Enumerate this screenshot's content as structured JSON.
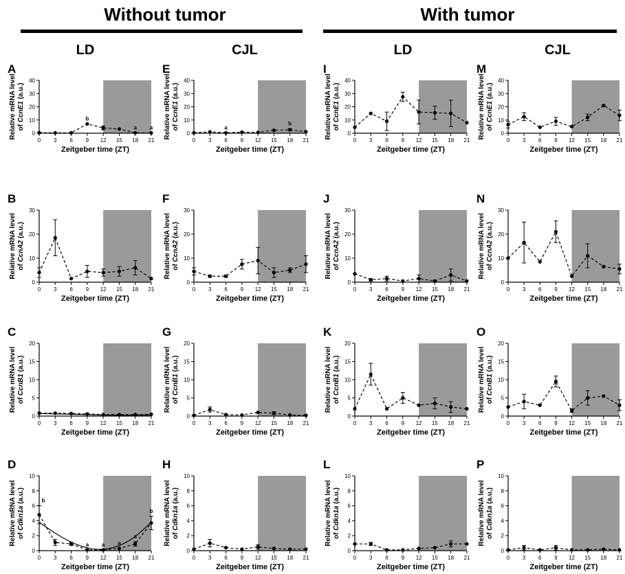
{
  "groups": [
    {
      "title": "Without tumor",
      "columns": [
        "LD",
        "CJL"
      ]
    },
    {
      "title": "With tumor",
      "columns": [
        "LD",
        "CJL"
      ]
    }
  ],
  "chart_data": [
    {
      "id": "A",
      "type": "line",
      "gene": "CcnE1",
      "ylabel": "Relative mRNA level",
      "ylabel2_prefix": "of ",
      "ylabel2_suffix": " (a.u.)",
      "xlabel": "Zeitgeber time (ZT)",
      "x": [
        0,
        3,
        6,
        9,
        12,
        15,
        18,
        21
      ],
      "y": [
        0.4,
        0.3,
        0.3,
        7,
        4,
        3.2,
        0.3,
        0.2
      ],
      "err": [
        0,
        0,
        0,
        0,
        1.5,
        0,
        0,
        0
      ],
      "ylim": [
        0,
        40
      ],
      "yticks": [
        0,
        10,
        20,
        30,
        40
      ],
      "shaded_from": 12,
      "letters": [
        [
          "b",
          9
        ],
        [
          "a",
          18
        ],
        [
          "a",
          21
        ]
      ],
      "fit": false
    },
    {
      "id": "E",
      "type": "line",
      "gene": "CcnE1",
      "ylabel": "Relative mRNA level",
      "ylabel2_prefix": "of ",
      "ylabel2_suffix": " (a.u.)",
      "xlabel": "Zeitgeber time (ZT)",
      "x": [
        0,
        3,
        6,
        9,
        12,
        15,
        18,
        21
      ],
      "y": [
        0.3,
        1,
        0.3,
        0.8,
        0.6,
        2.2,
        2.6,
        1.2
      ],
      "err": [
        0,
        0,
        0,
        0,
        0,
        0,
        0.8,
        0
      ],
      "ylim": [
        0,
        40
      ],
      "yticks": [
        0,
        10,
        20,
        30,
        40
      ],
      "shaded_from": 12,
      "letters": [
        [
          "a",
          6
        ],
        [
          "b",
          18
        ]
      ],
      "fit": false
    },
    {
      "id": "I",
      "type": "line",
      "gene": "CcnE1",
      "ylabel": "Relative mRNA level",
      "ylabel2_prefix": "of ",
      "ylabel2_suffix": " (a.u.)",
      "xlabel": "Zeitgeber time (ZT)",
      "x": [
        0,
        3,
        6,
        9,
        12,
        15,
        18,
        21
      ],
      "y": [
        4.5,
        15,
        9,
        27.5,
        16,
        15.5,
        15,
        8
      ],
      "err": [
        0,
        0,
        7,
        3.5,
        9,
        5,
        10,
        0
      ],
      "ylim": [
        0,
        40
      ],
      "yticks": [
        0,
        10,
        20,
        30,
        40
      ],
      "shaded_from": 12,
      "letters": [],
      "fit": false
    },
    {
      "id": "M",
      "type": "line",
      "gene": "CcnE1",
      "ylabel": "Relative mRNA level",
      "ylabel2_prefix": "of ",
      "ylabel2_suffix": " (a.u.)",
      "xlabel": "Zeitgeber time (ZT)",
      "x": [
        0,
        3,
        6,
        9,
        12,
        15,
        18,
        21
      ],
      "y": [
        6.5,
        12.5,
        4.5,
        9,
        5,
        12,
        21,
        13.5
      ],
      "err": [
        2.5,
        3,
        0,
        3,
        0,
        2.5,
        0,
        4
      ],
      "ylim": [
        0,
        40
      ],
      "yticks": [
        0,
        10,
        20,
        30,
        40
      ],
      "shaded_from": 12,
      "letters": [],
      "fit": false
    },
    {
      "id": "B",
      "type": "line",
      "gene": "CcnA2",
      "ylabel": "Relative mRNA level",
      "ylabel2_prefix": "of ",
      "ylabel2_suffix": " (a.u.)",
      "xlabel": "Zeitgeber time (ZT)",
      "x": [
        0,
        3,
        6,
        9,
        12,
        15,
        18,
        21
      ],
      "y": [
        4,
        18.5,
        1.5,
        4.5,
        4,
        4.5,
        6,
        1.5
      ],
      "err": [
        2,
        7.5,
        0,
        2.5,
        1.5,
        2,
        3,
        0
      ],
      "ylim": [
        0,
        30
      ],
      "yticks": [
        0,
        10,
        20,
        30
      ],
      "shaded_from": 12,
      "letters": [],
      "fit": false
    },
    {
      "id": "F",
      "type": "line",
      "gene": "CcnA2",
      "ylabel": "Relative mRNA level",
      "ylabel2_prefix": "of ",
      "ylabel2_suffix": " (a.u.)",
      "xlabel": "Zeitgeber time (ZT)",
      "x": [
        0,
        3,
        6,
        9,
        12,
        15,
        18,
        21
      ],
      "y": [
        4.5,
        2.5,
        2.5,
        7.5,
        9,
        4,
        5,
        7.5
      ],
      "err": [
        1.5,
        0.5,
        0.5,
        2,
        5.5,
        2,
        1,
        3.5
      ],
      "ylim": [
        0,
        30
      ],
      "yticks": [
        0,
        10,
        20,
        30
      ],
      "shaded_from": 12,
      "letters": [],
      "fit": false
    },
    {
      "id": "J",
      "type": "line",
      "gene": "CcnA2",
      "ylabel": "Relative mRNA level",
      "ylabel2_prefix": "of ",
      "ylabel2_suffix": " (a.u.)",
      "xlabel": "Zeitgeber time (ZT)",
      "x": [
        0,
        3,
        6,
        9,
        12,
        15,
        18,
        21
      ],
      "y": [
        3.5,
        1,
        1.5,
        0.5,
        1.5,
        0.5,
        3,
        0.5
      ],
      "err": [
        0,
        0.5,
        1,
        0,
        1.5,
        0,
        2.5,
        0
      ],
      "ylim": [
        0,
        30
      ],
      "yticks": [
        0,
        10,
        20,
        30
      ],
      "shaded_from": 12,
      "letters": [],
      "fit": false
    },
    {
      "id": "N",
      "type": "line",
      "gene": "CcnA2",
      "ylabel": "Relative mRNA level",
      "ylabel2_prefix": "of ",
      "ylabel2_suffix": " (a.u.)",
      "xlabel": "Zeitgeber time (ZT)",
      "x": [
        0,
        3,
        6,
        9,
        12,
        15,
        18,
        21
      ],
      "y": [
        10,
        16.5,
        8.5,
        21,
        2.5,
        11,
        6.5,
        5.5
      ],
      "err": [
        0,
        8.5,
        0,
        4.5,
        0,
        5,
        0,
        2
      ],
      "ylim": [
        0,
        30
      ],
      "yticks": [
        0,
        10,
        20,
        30
      ],
      "shaded_from": 12,
      "letters": [],
      "fit": false
    },
    {
      "id": "C",
      "type": "line",
      "gene": "CcnB1",
      "ylabel": "Relative mRNA level",
      "ylabel2_prefix": "of ",
      "ylabel2_suffix": " (a.u.)",
      "xlabel": "Zeitgeber time (ZT)",
      "x": [
        0,
        3,
        6,
        9,
        12,
        15,
        18,
        21
      ],
      "y": [
        0.8,
        0.8,
        0.7,
        0.6,
        0.4,
        0.4,
        0.4,
        0.5
      ],
      "err": [
        0,
        0,
        0,
        0,
        0,
        0,
        0,
        0
      ],
      "ylim": [
        0,
        20
      ],
      "yticks": [
        0,
        5,
        10,
        15,
        20
      ],
      "shaded_from": 12,
      "letters": [],
      "fit": true,
      "fit_y": [
        0.7,
        0.6,
        0.5,
        0.4,
        0.3,
        0.25,
        0.25,
        0.3
      ]
    },
    {
      "id": "G",
      "type": "line",
      "gene": "CcnB1",
      "ylabel": "Relative mRNA level",
      "ylabel2_prefix": "of ",
      "ylabel2_suffix": " (a.u.)",
      "xlabel": "Zeitgeber time (ZT)",
      "x": [
        0,
        3,
        6,
        9,
        12,
        15,
        18,
        21
      ],
      "y": [
        0.2,
        1.8,
        0.4,
        0.3,
        1,
        0.8,
        0.3,
        0.2
      ],
      "err": [
        0,
        0.7,
        0,
        0,
        0,
        0.4,
        0,
        0
      ],
      "ylim": [
        0,
        20
      ],
      "yticks": [
        0,
        5,
        10,
        15,
        20
      ],
      "shaded_from": 12,
      "letters": [],
      "fit": false
    },
    {
      "id": "K",
      "type": "line",
      "gene": "CcnB1",
      "ylabel": "Relative mRNA level",
      "ylabel2_prefix": "of ",
      "ylabel2_suffix": " (a.u.)",
      "xlabel": "Zeitgeber time (ZT)",
      "x": [
        0,
        3,
        6,
        9,
        12,
        15,
        18,
        21
      ],
      "y": [
        2,
        11.5,
        2,
        5,
        3,
        3.5,
        2.5,
        2
      ],
      "err": [
        0,
        3,
        0,
        1.5,
        0,
        1.5,
        1.5,
        0
      ],
      "ylim": [
        0,
        20
      ],
      "yticks": [
        0,
        5,
        10,
        15,
        20
      ],
      "shaded_from": 12,
      "letters": [],
      "fit": false
    },
    {
      "id": "O",
      "type": "line",
      "gene": "CcnB1",
      "ylabel": "Relative mRNA level",
      "ylabel2_prefix": "of ",
      "ylabel2_suffix": " (a.u.)",
      "xlabel": "Zeitgeber time (ZT)",
      "x": [
        0,
        3,
        6,
        9,
        12,
        15,
        18,
        21
      ],
      "y": [
        2.5,
        4,
        3,
        9.5,
        1.5,
        5,
        5.5,
        3
      ],
      "err": [
        0,
        2,
        0,
        1.5,
        0.5,
        2,
        0,
        1.5
      ],
      "ylim": [
        0,
        20
      ],
      "yticks": [
        0,
        5,
        10,
        15,
        20
      ],
      "shaded_from": 12,
      "letters": [],
      "fit": false
    },
    {
      "id": "D",
      "type": "line",
      "gene": "Cdkn1a",
      "ylabel": "Relative mRNA level",
      "ylabel2_prefix": "of ",
      "ylabel2_suffix": " (a.u.)",
      "xlabel": "Zeitgeber time (ZT)",
      "x": [
        0,
        3,
        6,
        9,
        12,
        15,
        18,
        21
      ],
      "y": [
        4.8,
        1.1,
        0.9,
        0.1,
        0.1,
        0.3,
        0.9,
        3.7
      ],
      "err": [
        1.2,
        0.4,
        0.2,
        0,
        0,
        0,
        0.3,
        0.9
      ],
      "ylim": [
        0,
        10
      ],
      "yticks": [
        0,
        2,
        4,
        6,
        8,
        10
      ],
      "shaded_from": 12,
      "letters": [
        [
          "b",
          0
        ],
        [
          "a",
          9
        ],
        [
          "a",
          12
        ],
        [
          "a",
          15
        ],
        [
          "a",
          18
        ],
        [
          "b",
          21
        ]
      ],
      "fit": true,
      "fit_y": [
        3.8,
        2.3,
        1.1,
        0.3,
        0.1,
        0.6,
        1.8,
        3.8
      ]
    },
    {
      "id": "H",
      "type": "line",
      "gene": "Cdkn1a",
      "ylabel": "Relative mRNA level",
      "ylabel2_prefix": "of ",
      "ylabel2_suffix": " (a.u.)",
      "xlabel": "Zeitgeber time (ZT)",
      "x": [
        0,
        3,
        6,
        9,
        12,
        15,
        18,
        21
      ],
      "y": [
        0.2,
        1,
        0.4,
        0.2,
        0.5,
        0.3,
        0.2,
        0.2
      ],
      "err": [
        0,
        0.5,
        0,
        0,
        0.3,
        0,
        0,
        0
      ],
      "ylim": [
        0,
        10
      ],
      "yticks": [
        0,
        2,
        4,
        6,
        8,
        10
      ],
      "shaded_from": 12,
      "letters": [],
      "fit": false
    },
    {
      "id": "L",
      "type": "line",
      "gene": "Cdkn1a",
      "ylabel": "Relative mRNA level",
      "ylabel2_prefix": "of ",
      "ylabel2_suffix": " (a.u.)",
      "xlabel": "Zeitgeber time (ZT)",
      "x": [
        0,
        3,
        6,
        9,
        12,
        15,
        18,
        21
      ],
      "y": [
        0.9,
        0.9,
        0.1,
        0.1,
        0.3,
        0.4,
        0.9,
        0.9
      ],
      "err": [
        0,
        0.2,
        0,
        0,
        0,
        0,
        0.4,
        0
      ],
      "ylim": [
        0,
        10
      ],
      "yticks": [
        0,
        2,
        4,
        6,
        8,
        10
      ],
      "shaded_from": 12,
      "letters": [],
      "fit": false
    },
    {
      "id": "P",
      "type": "line",
      "gene": "Cdkn1a",
      "ylabel": "Relative mRNA level",
      "ylabel2_prefix": "of ",
      "ylabel2_suffix": " (a.u.)",
      "xlabel": "Zeitgeber time (ZT)",
      "x": [
        0,
        3,
        6,
        9,
        12,
        15,
        18,
        21
      ],
      "y": [
        0.1,
        0.4,
        0.1,
        0.4,
        0.1,
        0.1,
        0.2,
        0.1
      ],
      "err": [
        0,
        0.3,
        0,
        0.3,
        0,
        0,
        0,
        0
      ],
      "ylim": [
        0,
        10
      ],
      "yticks": [
        0,
        2,
        4,
        6,
        8,
        10
      ],
      "shaded_from": 12,
      "letters": [],
      "fit": false
    }
  ],
  "colors": {
    "shade": "#9a9a9a",
    "ink": "#000000"
  }
}
